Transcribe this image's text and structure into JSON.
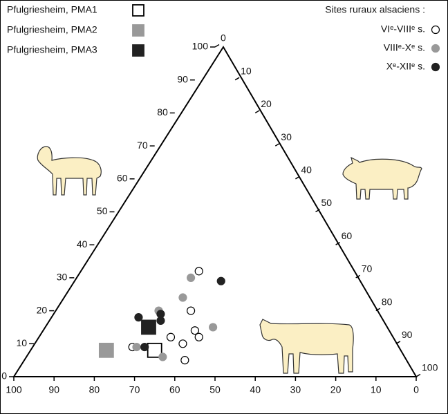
{
  "chart_data": {
    "type": "ternary",
    "left_axis": {
      "ticks": [
        0,
        10,
        20,
        30,
        40,
        50,
        60,
        70,
        80,
        90,
        100
      ]
    },
    "right_axis": {
      "ticks": [
        0,
        10,
        20,
        30,
        40,
        50,
        60,
        70,
        80,
        90,
        100
      ]
    },
    "bottom_axis": {
      "ticks": [
        100,
        90,
        80,
        70,
        60,
        50,
        40,
        30,
        20,
        10,
        0
      ]
    },
    "legend_title": "Sites ruraux alsaciens :",
    "series": [
      {
        "name": "Pfulgriesheim, PMA1",
        "color": "#ffffff",
        "marker": "square",
        "sheep": [
          8
        ],
        "pig": [
          31
        ],
        "cattle": [
          61
        ]
      },
      {
        "name": "Pfulgriesheim, PMA2",
        "color": "#999999",
        "marker": "square",
        "sheep": [
          8
        ],
        "pig": [
          19
        ],
        "cattle": [
          73
        ]
      },
      {
        "name": "Pfulgriesheim, PMA3",
        "color": "#222222",
        "marker": "square",
        "sheep": [
          15
        ],
        "pig": [
          26
        ],
        "cattle": [
          59
        ]
      },
      {
        "name": "VIᵉ-VIIIᵉ s.",
        "color": "#ffffff",
        "marker": "circle",
        "sheep": [
          32,
          20,
          12,
          10,
          5,
          14,
          12,
          9
        ],
        "pig": [
          30,
          34,
          33,
          37,
          40,
          38,
          40,
          25
        ],
        "cattle": [
          38,
          46,
          55,
          53,
          55,
          48,
          48,
          66
        ]
      },
      {
        "name": "VIIIᵉ-Xᵉ s.",
        "color": "#999999",
        "marker": "circle",
        "sheep": [
          30,
          24,
          20,
          15,
          9,
          6
        ],
        "pig": [
          29,
          30,
          26,
          42,
          26,
          34
        ],
        "cattle": [
          41,
          46,
          54,
          43,
          65,
          60
        ]
      },
      {
        "name": "Xᵉ-XIIᵉ s.",
        "color": "#222222",
        "marker": "circle",
        "sheep": [
          29,
          19,
          17,
          18,
          9
        ],
        "pig": [
          37,
          27,
          28,
          22,
          28
        ],
        "cattle": [
          34,
          54,
          55,
          60,
          63
        ]
      }
    ]
  }
}
